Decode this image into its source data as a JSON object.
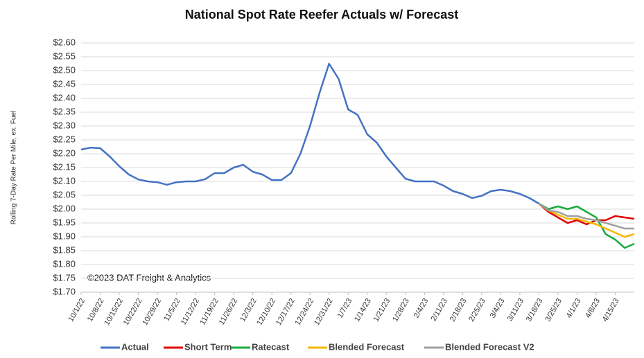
{
  "chart_data": {
    "type": "line",
    "title": "National Spot Rate Reefer Actuals w/ Forecast",
    "y_label": "Rolling 7-Day Rate Per Mile, ex. Fuel",
    "annotation": "©2023 DAT Freight & Analytics",
    "categories": [
      "10/1/22",
      null,
      "10/8/22",
      null,
      "10/15/22",
      null,
      "10/22/22",
      null,
      "10/29/22",
      null,
      "11/5/22",
      null,
      "11/12/22",
      null,
      "11/19/22",
      null,
      "11/26/22",
      null,
      "12/3/22",
      null,
      "12/10/22",
      null,
      "12/17/22",
      null,
      "12/24/22",
      null,
      "12/31/22",
      null,
      "1/7/23",
      null,
      "1/14/23",
      null,
      "1/21/23",
      null,
      "1/28/23",
      null,
      "2/4/23",
      null,
      "2/11/23",
      null,
      "2/18/23",
      null,
      "2/25/23",
      null,
      "3/4/23",
      null,
      "3/11/23",
      null,
      "3/18/23",
      null,
      "3/25/23",
      null,
      "4/1/23",
      null,
      "4/8/23",
      null,
      "4/15/23",
      null,
      null
    ],
    "series": [
      {
        "name": "Actual",
        "color": "#4472c4",
        "values": [
          2.215,
          2.222,
          2.22,
          2.19,
          2.155,
          2.125,
          2.107,
          2.1,
          2.097,
          2.088,
          2.097,
          2.1,
          2.1,
          2.108,
          2.13,
          2.13,
          2.15,
          2.16,
          2.135,
          2.125,
          2.105,
          2.105,
          2.13,
          2.2,
          2.3,
          2.42,
          2.525,
          2.47,
          2.36,
          2.34,
          2.27,
          2.24,
          2.19,
          2.15,
          2.11,
          2.1,
          2.1,
          2.1,
          2.085,
          2.065,
          2.055,
          2.04,
          2.048,
          2.065,
          2.07,
          2.065,
          2.055,
          2.04,
          2.02,
          null,
          null,
          null,
          null,
          null,
          null,
          null,
          null,
          null,
          null
        ]
      },
      {
        "name": "Short Term",
        "color": "#e00000",
        "values": [
          null,
          null,
          null,
          null,
          null,
          null,
          null,
          null,
          null,
          null,
          null,
          null,
          null,
          null,
          null,
          null,
          null,
          null,
          null,
          null,
          null,
          null,
          null,
          null,
          null,
          null,
          null,
          null,
          null,
          null,
          null,
          null,
          null,
          null,
          null,
          null,
          null,
          null,
          null,
          null,
          null,
          null,
          null,
          null,
          null,
          null,
          null,
          null,
          2.02,
          1.99,
          1.97,
          1.95,
          1.96,
          1.945,
          1.96,
          1.96,
          1.975,
          1.97,
          1.965
        ]
      },
      {
        "name": "Ratecast",
        "color": "#1aab40",
        "values": [
          null,
          null,
          null,
          null,
          null,
          null,
          null,
          null,
          null,
          null,
          null,
          null,
          null,
          null,
          null,
          null,
          null,
          null,
          null,
          null,
          null,
          null,
          null,
          null,
          null,
          null,
          null,
          null,
          null,
          null,
          null,
          null,
          null,
          null,
          null,
          null,
          null,
          null,
          null,
          null,
          null,
          null,
          null,
          null,
          null,
          null,
          null,
          null,
          2.02,
          2.0,
          2.01,
          2.0,
          2.01,
          1.99,
          1.97,
          1.91,
          1.89,
          1.86,
          1.875
        ]
      },
      {
        "name": "Blended Forecast",
        "color": "#f5b800",
        "values": [
          null,
          null,
          null,
          null,
          null,
          null,
          null,
          null,
          null,
          null,
          null,
          null,
          null,
          null,
          null,
          null,
          null,
          null,
          null,
          null,
          null,
          null,
          null,
          null,
          null,
          null,
          null,
          null,
          null,
          null,
          null,
          null,
          null,
          null,
          null,
          null,
          null,
          null,
          null,
          null,
          null,
          null,
          null,
          null,
          null,
          null,
          null,
          null,
          2.02,
          1.995,
          1.98,
          1.965,
          1.965,
          1.955,
          1.945,
          1.93,
          1.915,
          1.9,
          1.91
        ]
      },
      {
        "name": "Blended Forecast V2",
        "color": "#a0a0a0",
        "values": [
          null,
          null,
          null,
          null,
          null,
          null,
          null,
          null,
          null,
          null,
          null,
          null,
          null,
          null,
          null,
          null,
          null,
          null,
          null,
          null,
          null,
          null,
          null,
          null,
          null,
          null,
          null,
          null,
          null,
          null,
          null,
          null,
          null,
          null,
          null,
          null,
          null,
          null,
          null,
          null,
          null,
          null,
          null,
          null,
          null,
          null,
          null,
          null,
          2.02,
          1.995,
          1.99,
          1.975,
          1.975,
          1.965,
          1.96,
          1.95,
          1.94,
          1.93,
          1.93
        ]
      }
    ],
    "ylim": [
      1.7,
      2.6
    ],
    "yticks": [
      {
        "value": 1.7,
        "label": "$1.70"
      },
      {
        "value": 1.75,
        "label": "$1.75"
      },
      {
        "value": 1.8,
        "label": "$1.80"
      },
      {
        "value": 1.85,
        "label": "$1.85"
      },
      {
        "value": 1.9,
        "label": "$1.90"
      },
      {
        "value": 1.95,
        "label": "$1.95"
      },
      {
        "value": 2.0,
        "label": "$2.00"
      },
      {
        "value": 2.05,
        "label": "$2.05"
      },
      {
        "value": 2.1,
        "label": "$2.10"
      },
      {
        "value": 2.15,
        "label": "$2.15"
      },
      {
        "value": 2.2,
        "label": "$2.20"
      },
      {
        "value": 2.25,
        "label": "$2.25"
      },
      {
        "value": 2.3,
        "label": "$2.30"
      },
      {
        "value": 2.35,
        "label": "$2.35"
      },
      {
        "value": 2.4,
        "label": "$2.40"
      },
      {
        "value": 2.45,
        "label": "$2.45"
      },
      {
        "value": 2.5,
        "label": "$2.50"
      },
      {
        "value": 2.55,
        "label": "$2.55"
      },
      {
        "value": 2.6,
        "label": "$2.60"
      }
    ],
    "grid": true,
    "legend": "bottom"
  }
}
